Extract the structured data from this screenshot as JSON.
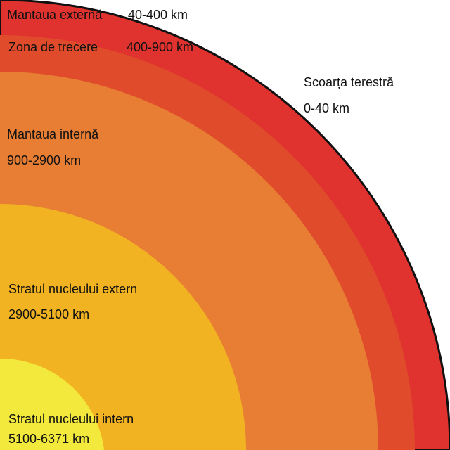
{
  "layers": [
    {
      "name": "Scoarța terestră",
      "range": "0-40 km"
    },
    {
      "name": "Mantaua externă",
      "range": "40-400 km"
    },
    {
      "name": "Zona de trecere",
      "range": "400-900 km"
    },
    {
      "name": "Mantaua internă",
      "range": "900-2900 km"
    },
    {
      "name": "Stratul nucleului extern",
      "range": "2900-5100 km"
    },
    {
      "name": "Stratul nucleului intern",
      "range": "5100-6371 km"
    }
  ]
}
